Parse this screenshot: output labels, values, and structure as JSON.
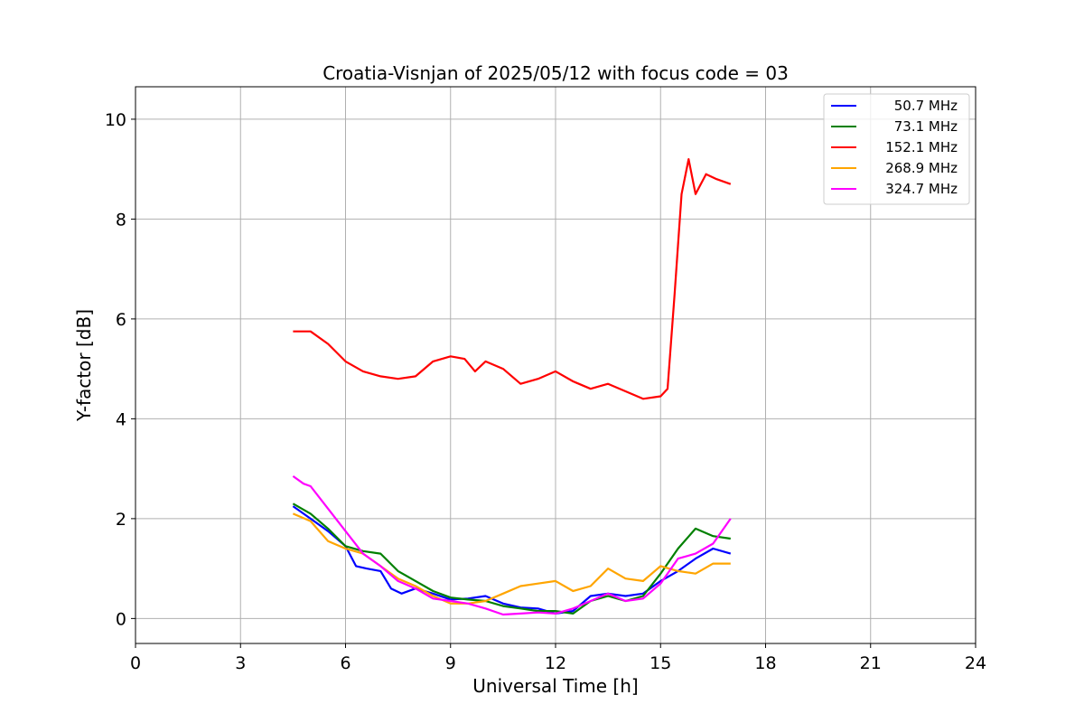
{
  "chart_data": {
    "type": "line",
    "title": "Croatia-Visnjan of 2025/05/12 with focus code = 03",
    "xlabel": "Universal Time [h]",
    "ylabel": "Y-factor [dB]",
    "xlim": [
      0,
      24
    ],
    "ylim": [
      -0.5,
      10.65
    ],
    "xticks": [
      0,
      3,
      6,
      9,
      12,
      15,
      18,
      21,
      24
    ],
    "xtick_labels": [
      "0",
      "3",
      "6",
      "9",
      "12",
      "15",
      "18",
      "21",
      "24"
    ],
    "yticks": [
      0,
      2,
      4,
      6,
      8,
      10
    ],
    "ytick_labels": [
      "0",
      "2",
      "4",
      "6",
      "8",
      "10"
    ],
    "grid": true,
    "legend_position": "top-right",
    "series": [
      {
        "name": " 50.7 MHz",
        "color": "#0000ff",
        "x": [
          4.5,
          5.0,
          5.5,
          6.0,
          6.3,
          6.6,
          7.0,
          7.3,
          7.6,
          8.0,
          8.5,
          9.0,
          9.5,
          10.0,
          10.5,
          11.0,
          11.5,
          12.0,
          12.5,
          13.0,
          13.5,
          14.0,
          14.5,
          15.0,
          15.5,
          16.0,
          16.5,
          17.0
        ],
        "y": [
          2.25,
          2.0,
          1.75,
          1.45,
          1.05,
          1.0,
          0.95,
          0.6,
          0.5,
          0.6,
          0.5,
          0.38,
          0.4,
          0.45,
          0.3,
          0.22,
          0.2,
          0.1,
          0.15,
          0.45,
          0.5,
          0.45,
          0.5,
          0.75,
          0.95,
          1.2,
          1.4,
          1.3
        ]
      },
      {
        "name": " 73.1 MHz",
        "color": "#008000",
        "x": [
          4.5,
          5.0,
          5.5,
          6.0,
          6.5,
          7.0,
          7.5,
          8.0,
          8.5,
          9.0,
          9.5,
          10.0,
          10.5,
          11.0,
          11.5,
          12.0,
          12.5,
          13.0,
          13.5,
          14.0,
          14.5,
          15.0,
          15.5,
          16.0,
          16.5,
          17.0
        ],
        "y": [
          2.3,
          2.1,
          1.8,
          1.45,
          1.35,
          1.3,
          0.95,
          0.75,
          0.55,
          0.42,
          0.38,
          0.35,
          0.25,
          0.2,
          0.15,
          0.15,
          0.1,
          0.35,
          0.45,
          0.35,
          0.45,
          0.9,
          1.4,
          1.8,
          1.65,
          1.6
        ]
      },
      {
        "name": "152.1 MHz",
        "color": "#ff0000",
        "x": [
          4.5,
          5.0,
          5.5,
          6.0,
          6.5,
          7.0,
          7.5,
          8.0,
          8.5,
          9.0,
          9.4,
          9.7,
          10.0,
          10.5,
          11.0,
          11.5,
          12.0,
          12.5,
          13.0,
          13.5,
          14.0,
          14.5,
          15.0,
          15.2,
          15.4,
          15.6,
          15.8,
          16.0,
          16.3,
          16.6,
          17.0
        ],
        "y": [
          5.75,
          5.75,
          5.5,
          5.15,
          4.95,
          4.85,
          4.8,
          4.85,
          5.15,
          5.25,
          5.2,
          4.95,
          5.15,
          5.0,
          4.7,
          4.8,
          4.95,
          4.75,
          4.6,
          4.7,
          4.55,
          4.4,
          4.45,
          4.6,
          6.5,
          8.5,
          9.2,
          8.5,
          8.9,
          8.8,
          8.7
        ]
      },
      {
        "name": "268.9 MHz",
        "color": "#ffa500",
        "x": [
          4.5,
          5.0,
          5.5,
          6.0,
          6.5,
          7.0,
          7.5,
          8.0,
          8.5,
          9.0,
          9.5,
          10.0,
          10.5,
          11.0,
          11.5,
          12.0,
          12.5,
          13.0,
          13.5,
          14.0,
          14.5,
          15.0,
          15.5,
          16.0,
          16.5,
          17.0
        ],
        "y": [
          2.1,
          1.95,
          1.55,
          1.4,
          1.3,
          1.05,
          0.8,
          0.65,
          0.45,
          0.3,
          0.3,
          0.35,
          0.5,
          0.65,
          0.7,
          0.75,
          0.55,
          0.65,
          1.0,
          0.8,
          0.75,
          1.05,
          0.95,
          0.9,
          1.1,
          1.1
        ]
      },
      {
        "name": "324.7 MHz",
        "color": "#ff00ff",
        "x": [
          4.5,
          4.8,
          5.0,
          5.5,
          6.0,
          6.5,
          7.0,
          7.5,
          8.0,
          8.5,
          9.0,
          9.5,
          10.0,
          10.5,
          11.0,
          11.5,
          12.0,
          12.5,
          13.0,
          13.5,
          14.0,
          14.5,
          15.0,
          15.5,
          16.0,
          16.5,
          17.0
        ],
        "y": [
          2.85,
          2.7,
          2.65,
          2.2,
          1.75,
          1.3,
          1.05,
          0.75,
          0.6,
          0.4,
          0.35,
          0.3,
          0.2,
          0.08,
          0.1,
          0.12,
          0.1,
          0.2,
          0.35,
          0.5,
          0.35,
          0.4,
          0.7,
          1.2,
          1.3,
          1.5,
          2.0
        ]
      }
    ]
  }
}
